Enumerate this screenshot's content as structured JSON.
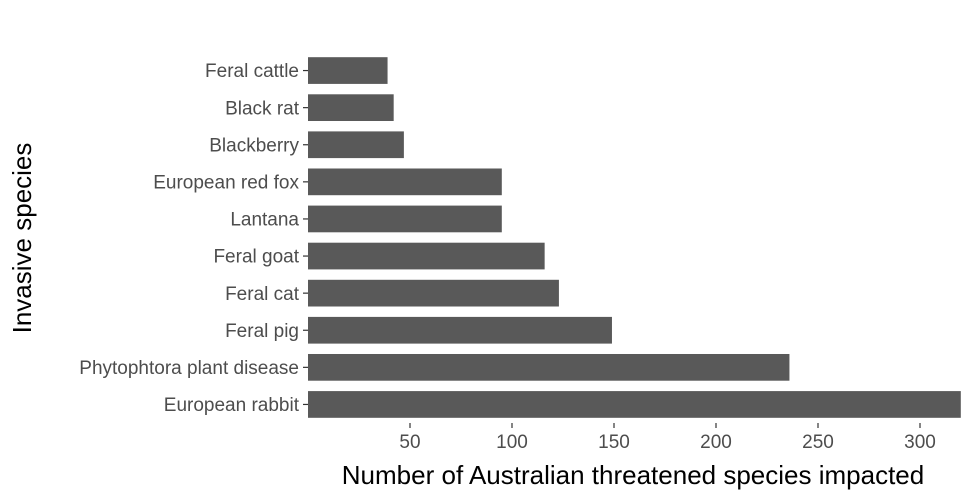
{
  "chart_data": {
    "type": "bar",
    "orientation": "horizontal",
    "categories": [
      "Feral cattle",
      "Black rat",
      "Blackberry",
      "European red fox",
      "Lantana",
      "Feral goat",
      "Feral cat",
      "Feral pig",
      "Phytophtora plant disease",
      "European rabbit"
    ],
    "values": [
      39,
      42,
      47,
      95,
      95,
      116,
      123,
      149,
      236,
      320
    ],
    "xlabel": "Number of Australian threatened species impacted",
    "ylabel": "Invasive species",
    "x_ticks": [
      50,
      100,
      150,
      200,
      250,
      300
    ],
    "xlim": [
      0,
      320
    ],
    "grid": false,
    "legend": "none",
    "bar_color": "#595959",
    "tick_color": "#333333"
  }
}
